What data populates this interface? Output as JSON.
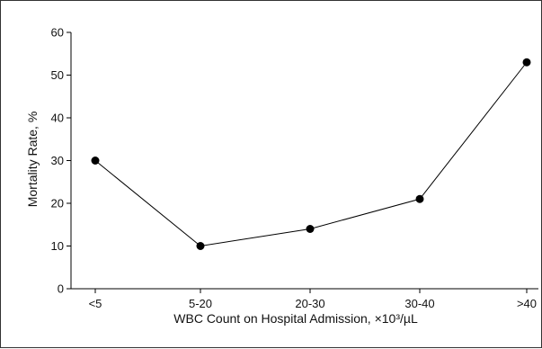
{
  "chart_data": {
    "type": "line",
    "title": "",
    "xlabel": "WBC Count on Hospital Admission, ×10³/µL",
    "ylabel": "Mortality Rate, %",
    "categories": [
      "<5",
      "5-20",
      "20-30",
      "30-40",
      ">40"
    ],
    "series": [
      {
        "values": [
          30,
          10,
          14,
          21,
          53
        ]
      }
    ],
    "ylim": [
      0,
      60
    ],
    "yticks": [
      0,
      10,
      20,
      30,
      40,
      50,
      60
    ],
    "grid": false,
    "legend": "none",
    "colors": {
      "line": "#000000",
      "marker": "#000000",
      "axis": "#000000",
      "frame": "#333333"
    }
  }
}
